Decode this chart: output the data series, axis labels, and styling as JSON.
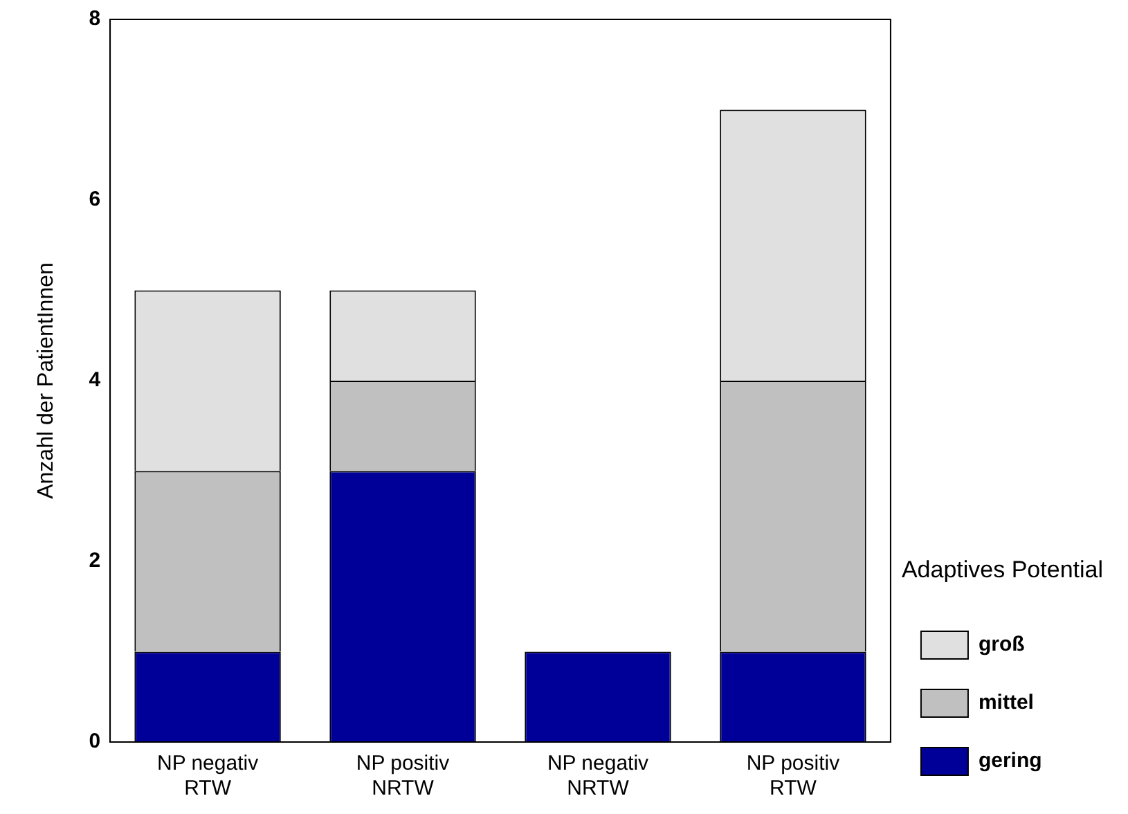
{
  "chart_data": {
    "type": "bar",
    "stacked": true,
    "ylabel": "Anzahl der PatientInnen",
    "legend_title": "Adaptives Potential",
    "legend": "right",
    "grid": false,
    "categories": [
      "NP negativ RTW",
      "NP positiv NRTW",
      "NP negativ NRTW",
      "NP positiv RTW"
    ],
    "series": [
      {
        "name": "gering",
        "color": "#000099",
        "values": [
          1,
          3,
          1,
          1
        ]
      },
      {
        "name": "mittel",
        "color": "#c0c0c0",
        "values": [
          2,
          1,
          null,
          3
        ]
      },
      {
        "name": "groß",
        "color": "#e0e0e0",
        "values": [
          2,
          1,
          null,
          3
        ]
      }
    ],
    "ylim": [
      0,
      8
    ],
    "yticks": [
      0,
      2,
      4,
      6,
      8
    ]
  }
}
